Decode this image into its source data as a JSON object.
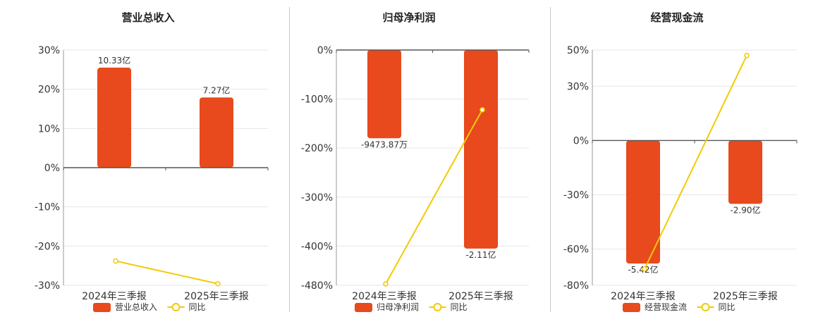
{
  "colors": {
    "bar": "#E8491D",
    "line": "#F2CB05",
    "axis": "#555555",
    "grid": "#e6e6e6"
  },
  "chart_data": [
    {
      "type": "bar",
      "title": "营业总收入",
      "categories": [
        "2024年三季报",
        "2025年三季报"
      ],
      "series": [
        {
          "name": "营业总收入",
          "type": "bar",
          "values": [
            25.5,
            17.9
          ],
          "labels": [
            "10.33亿",
            "7.27亿"
          ]
        },
        {
          "name": "同比",
          "type": "line",
          "values": [
            -23.8,
            -29.6
          ]
        }
      ],
      "ylim": [
        -30,
        30
      ],
      "yticks": [
        30,
        20,
        10,
        0,
        -10,
        -20,
        -30
      ],
      "ytick_labels": [
        "30%",
        "20%",
        "10%",
        "0%",
        "-10%",
        "-20%",
        "-30%"
      ],
      "grid": true,
      "legend": "bottom"
    },
    {
      "type": "bar",
      "title": "归母净利润",
      "categories": [
        "2024年三季报",
        "2025年三季报"
      ],
      "series": [
        {
          "name": "归母净利润",
          "type": "bar",
          "values": [
            -180,
            -405
          ],
          "labels": [
            "-9473.87万",
            "-2.11亿"
          ]
        },
        {
          "name": "同比",
          "type": "line",
          "values": [
            -477,
            -122
          ]
        }
      ],
      "ylim": [
        -480,
        0
      ],
      "yticks": [
        0,
        -100,
        -200,
        -300,
        -400,
        -480
      ],
      "ytick_labels": [
        "0%",
        "-100%",
        "-200%",
        "-300%",
        "-400%",
        "-480%"
      ],
      "grid": true,
      "legend": "bottom"
    },
    {
      "type": "bar",
      "title": "经营现金流",
      "categories": [
        "2024年三季报",
        "2025年三季报"
      ],
      "series": [
        {
          "name": "经营现金流",
          "type": "bar",
          "values": [
            -68,
            -35
          ],
          "labels": [
            "-5.42亿",
            "-2.90亿"
          ]
        },
        {
          "name": "同比",
          "type": "line",
          "values": [
            -71,
            47
          ]
        }
      ],
      "ylim": [
        -80,
        50
      ],
      "yticks": [
        50,
        30,
        0,
        -30,
        -60,
        -80
      ],
      "ytick_labels": [
        "50%",
        "30%",
        "0%",
        "-30%",
        "-60%",
        "-80%"
      ],
      "grid": true,
      "legend": "bottom"
    }
  ]
}
